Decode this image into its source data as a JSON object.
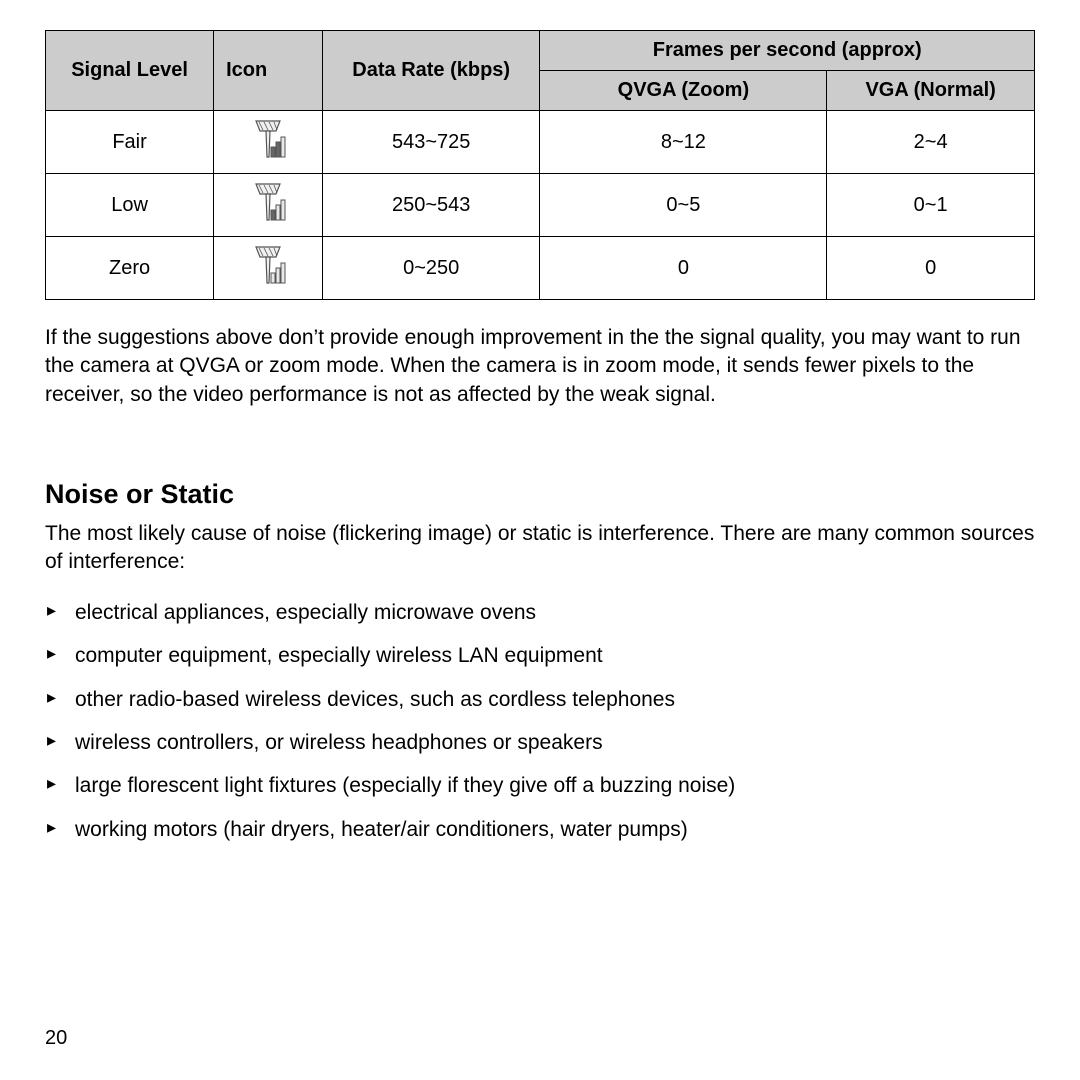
{
  "table": {
    "header": {
      "signal": "Signal Level",
      "icon": "Icon",
      "rate": "Data Rate (kbps)",
      "fps": "Frames per second (approx)",
      "qvga": "QVGA (Zoom)",
      "vga": "VGA (Normal)"
    },
    "col_widths": [
      "17%",
      "11%",
      "22%",
      "29%",
      "21%"
    ],
    "header_bg": "#cccccc",
    "rows": [
      {
        "signal": "Fair",
        "bars": 2,
        "rate": "543~725",
        "qvga": "8~12",
        "vga": "2~4"
      },
      {
        "signal": "Low",
        "bars": 1,
        "rate": "250~543",
        "qvga": "0~5",
        "vga": "0~1"
      },
      {
        "signal": "Zero",
        "bars": 0,
        "rate": "0~250",
        "qvga": "0",
        "vga": "0"
      }
    ]
  },
  "paragraph1": "If the suggestions above don’t provide enough improvement in the the signal quality, you may want to run the camera at QVGA or zoom mode. When the camera is in zoom mode, it sends fewer pixels to the receiver, so the video performance is not as affected by the weak signal.",
  "section_heading": "Noise or Static",
  "paragraph2": "The most likely cause of noise (flickering image) or static is interference. There are many common sources of interference:",
  "bullets": [
    "electrical appliances, especially microwave ovens",
    "computer equipment, especially wireless LAN equipment",
    "other radio-based wireless devices, such as cordless telephones",
    "wireless controllers, or wireless headphones or speakers",
    "large florescent light fixtures (especially if they give off a buzzing noise)",
    "working motors (hair dryers, heater/air conditioners, water pumps)"
  ],
  "page_number": "20",
  "icon_style": {
    "outline": "#555555",
    "fill_active": "#666666",
    "fill_inactive": "#e8e8e8",
    "fill_box": "#f0f0f0"
  }
}
